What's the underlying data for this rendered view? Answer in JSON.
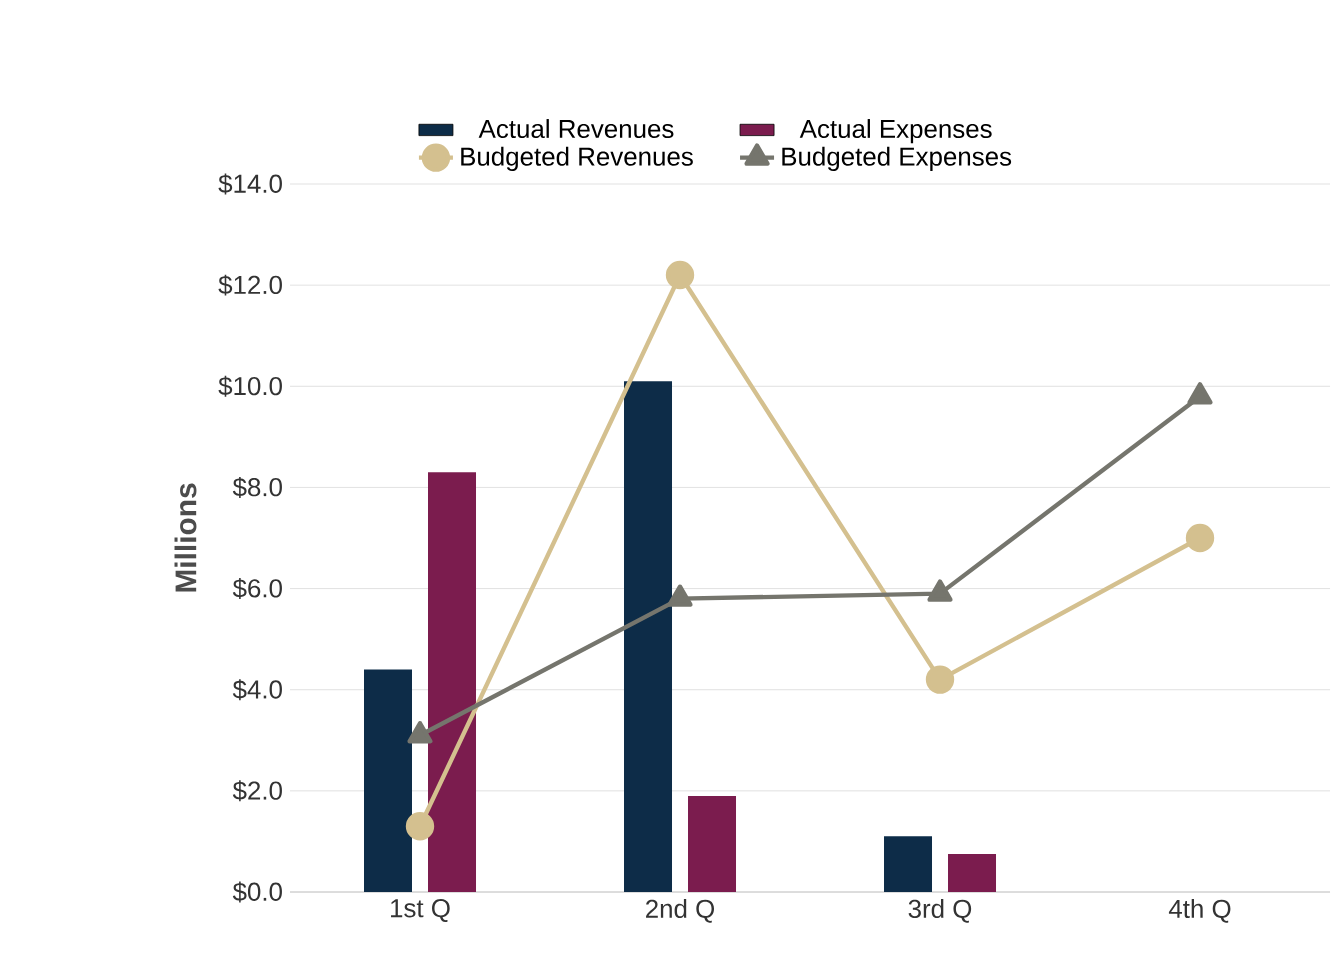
{
  "chart_data": {
    "type": "bar",
    "ylabel": "Millions",
    "categories": [
      "1st Q",
      "2nd Q",
      "3rd Q",
      "4th Q"
    ],
    "series": [
      {
        "name": "Actual Revenues",
        "color": "#0d2c48",
        "values": [
          4.4,
          10.1,
          1.1,
          null
        ]
      },
      {
        "name": "Actual Expenses",
        "color": "#7b1c4e",
        "values": [
          8.3,
          1.9,
          0.75,
          null
        ]
      },
      {
        "name": "Budgeted Revenues",
        "type": "line",
        "marker": "circle",
        "color": "#d4c08f",
        "values": [
          1.3,
          12.2,
          4.2,
          7.0
        ]
      },
      {
        "name": "Budgeted Expenses",
        "type": "line",
        "marker": "triangle",
        "color": "#75756d",
        "values": [
          3.1,
          5.8,
          5.9,
          9.8
        ]
      }
    ],
    "ylim": [
      0,
      14
    ],
    "yticks": [
      {
        "value": 0,
        "label": "$0.0"
      },
      {
        "value": 2,
        "label": "$2.0"
      },
      {
        "value": 4,
        "label": "$4.0"
      },
      {
        "value": 6,
        "label": "$6.0"
      },
      {
        "value": 8,
        "label": "$8.0"
      },
      {
        "value": 10,
        "label": "$10.0"
      },
      {
        "value": 12,
        "label": "$12.0"
      },
      {
        "value": 14,
        "label": "$14.0"
      }
    ],
    "grid": "y",
    "legend": "top"
  }
}
